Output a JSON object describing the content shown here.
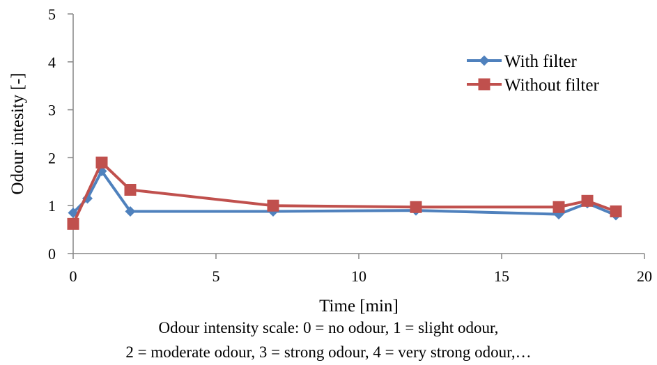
{
  "chart_data": {
    "type": "line",
    "title": "",
    "xlabel": "Time [min]",
    "ylabel": "Odour intesity [-]",
    "xlim": [
      0,
      20
    ],
    "ylim": [
      0,
      5
    ],
    "x_ticks": [
      0,
      5,
      10,
      15,
      20
    ],
    "y_ticks": [
      0,
      1,
      2,
      3,
      4,
      5
    ],
    "grid": false,
    "legend_position": "top-right",
    "series": [
      {
        "name": "With filter",
        "color": "#4F81BD",
        "marker": "diamond",
        "x": [
          0,
          0.5,
          1,
          2,
          7,
          12,
          17,
          18,
          19
        ],
        "y": [
          0.85,
          1.15,
          1.72,
          0.88,
          0.88,
          0.9,
          0.82,
          1.05,
          0.8
        ]
      },
      {
        "name": "Without filter",
        "color": "#C0504D",
        "marker": "square",
        "x": [
          0,
          1,
          2,
          7,
          12,
          17,
          18,
          19
        ],
        "y": [
          0.62,
          1.9,
          1.33,
          1.0,
          0.97,
          0.97,
          1.1,
          0.88
        ]
      }
    ]
  },
  "caption": {
    "line1": "Odour intensity scale:  0 = no odour, 1 = slight odour,",
    "line2": "2 = moderate odour, 3 = strong odour, 4 = very strong odour,…"
  }
}
